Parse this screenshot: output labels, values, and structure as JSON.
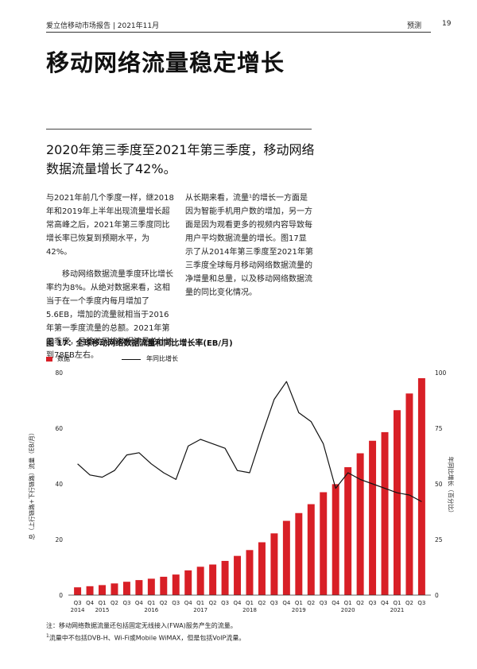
{
  "header": {
    "left_text": "爱立信移动市场报告 | 2021年11月",
    "section": "预测",
    "page_number": "19"
  },
  "title": "移动网络流量稳定增长",
  "subtitle": "2020年第三季度至2021年第三季度，移动网络数据流量增长了42%。",
  "body": {
    "left_p1": "与2021年前几个季度一样，继2018年和2019年上半年出现流量增长超常高峰之后，2021年第三季度同比增长率已恢复到预期水平，为42%。",
    "left_p2": "移动网络数据流量季度环比增长率约为8%。从绝对数据来看，这相当于在一个季度内每月增加了5.6EB，增加的流量就相当于2016年第一季度流量的总额。2021年第三季度，月移动网络数据流量总计达到78EB左右。",
    "right_p1": "从长期来看，流量¹的增长一方面是因为智能手机用户数的增加，另一方面是因为观看更多的视频内容导致每用户平均数据流量的增长。图17显示了从2014年第三季度至2021年第三季度全球每月移动网络数据流量的净增量和总量，以及移动网络数据流量的同比变化情况。"
  },
  "figure": {
    "title": "图 17：全球移动网络数据流量和同比增长率(EB/月)",
    "legend_bar": "数据",
    "legend_line": "年同比增长"
  },
  "chart_data": {
    "type": "bar",
    "title": "图 17：全球移动网络数据流量和同比增长率(EB/月)",
    "ylabel": "总（上行链路+下行链路）流量（EB/月）",
    "ylabel_right": "年同比增长（百分比）",
    "ylim": [
      0,
      80
    ],
    "ylim_right": [
      0,
      100
    ],
    "yticks": [
      "0",
      "20",
      "40",
      "60",
      "80"
    ],
    "yticks_right": [
      "0",
      "25",
      "50",
      "75",
      "100"
    ],
    "quarters": [
      "Q3",
      "Q4",
      "Q1",
      "Q2",
      "Q3",
      "Q4",
      "Q1",
      "Q2",
      "Q3",
      "Q4",
      "Q1",
      "Q2",
      "Q3",
      "Q4",
      "Q1",
      "Q2",
      "Q3",
      "Q4",
      "Q1",
      "Q2",
      "Q3",
      "Q4",
      "Q1",
      "Q2",
      "Q3",
      "Q4",
      "Q1",
      "Q2",
      "Q3"
    ],
    "years": [
      {
        "label": "2014",
        "index": 0
      },
      {
        "label": "2015",
        "index": 2
      },
      {
        "label": "2016",
        "index": 6
      },
      {
        "label": "2017",
        "index": 10
      },
      {
        "label": "2018",
        "index": 14
      },
      {
        "label": "2019",
        "index": 18
      },
      {
        "label": "2020",
        "index": 22
      },
      {
        "label": "2021",
        "index": 26
      }
    ],
    "series": [
      {
        "name": "数据",
        "type": "bar",
        "color": "#d81f26",
        "values": [
          2.8,
          3.2,
          3.6,
          4.2,
          4.8,
          5.4,
          5.9,
          6.6,
          7.4,
          8.9,
          10.2,
          11.0,
          12.3,
          14.1,
          16.2,
          19.0,
          22.2,
          26.7,
          29.5,
          32.7,
          37.0,
          39.9,
          46.0,
          51.0,
          55.5,
          58.6,
          66.5,
          72.5,
          78.0
        ]
      },
      {
        "name": "年同比增长",
        "type": "line",
        "color": "#111111",
        "axis": "right",
        "values": [
          59,
          54,
          53,
          56,
          63,
          64,
          59,
          55,
          52,
          67,
          70,
          68,
          66,
          56,
          55,
          72,
          88,
          96,
          82,
          78,
          68,
          48,
          55,
          52,
          50,
          48,
          46,
          45,
          42
        ]
      }
    ]
  },
  "notes": {
    "note1": "注：移动网络数据流量还包括固定无线接入(FWA)服务产生的流量。",
    "note2_sup": "1",
    "note2": "流量中不包括DVB-H、Wi-Fi或Mobile WiMAX，但是包括VoIP流量。"
  }
}
